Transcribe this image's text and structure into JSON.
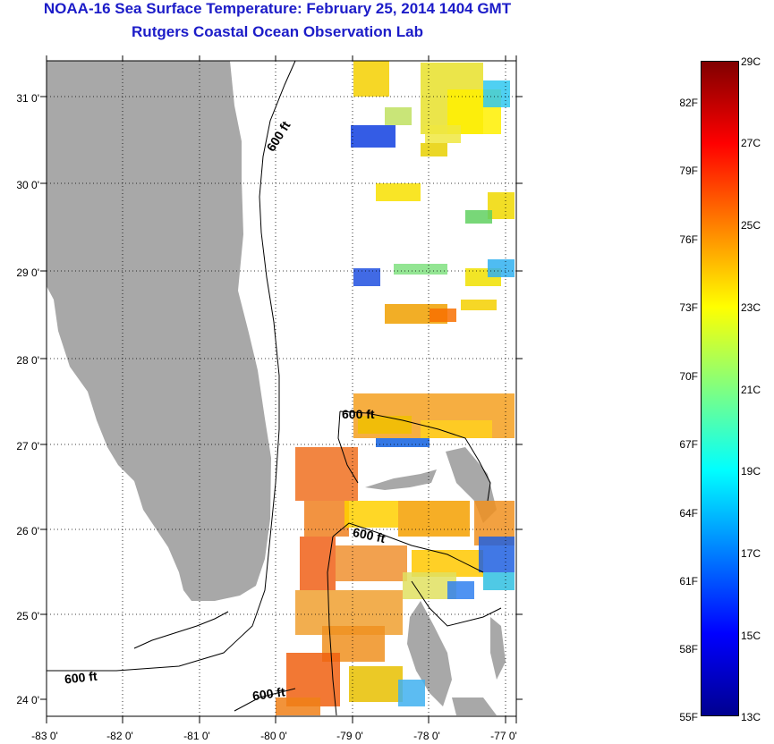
{
  "title": "NOAA-16 Sea Surface Temperature:  February 25, 2014 1404 GMT",
  "subtitle": "Rutgers Coastal Ocean Observation Lab",
  "map": {
    "lat_ticks": [
      "31 0'",
      "30 0'",
      "29 0'",
      "28 0'",
      "27 0'",
      "26 0'",
      "25 0'",
      "24 0'"
    ],
    "lon_ticks": [
      "-83 0'",
      "-82 0'",
      "-81 0'",
      "-80 0'",
      "-79 0'",
      "-78 0'",
      "-77 0'"
    ],
    "isobath_labels": [
      "600 ft",
      "600 ft",
      "600 ft",
      "600 ft",
      "600 ft"
    ],
    "colors": {
      "land": "#a8a8a8",
      "frame": "#000000",
      "grid": "#000000"
    }
  },
  "colorbar": {
    "fahrenheit_labels": [
      "82F",
      "79F",
      "76F",
      "73F",
      "70F",
      "67F",
      "64F",
      "61F",
      "58F",
      "55F"
    ],
    "celsius_labels": [
      "29C",
      "27C",
      "25C",
      "23C",
      "21C",
      "19C",
      "17C",
      "15C",
      "13C"
    ],
    "range_celsius": [
      13,
      29
    ],
    "colormap": [
      "#00008f",
      "#0000ff",
      "#0080ff",
      "#00ffff",
      "#80ff80",
      "#ffff00",
      "#ff8000",
      "#ff0000",
      "#800000"
    ]
  }
}
